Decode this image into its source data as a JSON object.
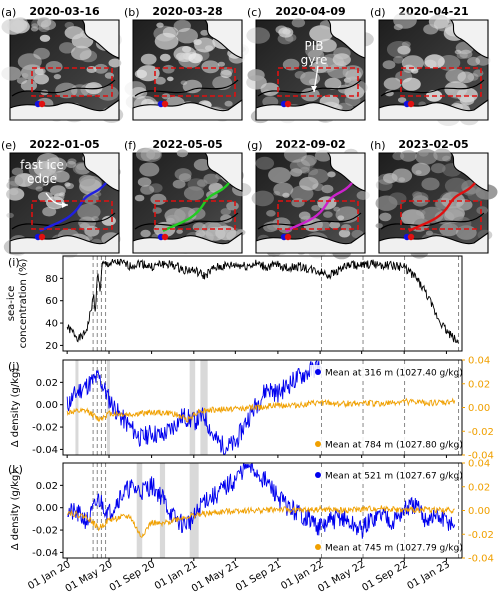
{
  "map_panels": [
    {
      "letter": "(a)",
      "date": "2020-03-16",
      "ice_level": 0.55,
      "annotation": "",
      "marker_color": "",
      "annotation_id": ""
    },
    {
      "letter": "(b)",
      "date": "2020-03-28",
      "ice_level": 0.75,
      "annotation": "",
      "marker_color": "",
      "annotation_id": ""
    },
    {
      "letter": "(c)",
      "date": "2020-04-09",
      "ice_level": 0.5,
      "annotation": "PIB\ngyre",
      "marker_color": "",
      "annotation_id": "pib-gyre"
    },
    {
      "letter": "(d)",
      "date": "2020-04-21",
      "ice_level": 0.65,
      "annotation": "",
      "marker_color": "",
      "annotation_id": ""
    },
    {
      "letter": "(e)",
      "date": "2022-01-05",
      "ice_level": 0.45,
      "annotation": "fast ice\nedge",
      "marker_color": "#1f1fe0",
      "annotation_id": "fast-ice-edge"
    },
    {
      "letter": "(f)",
      "date": "2022-05-05",
      "ice_level": 0.35,
      "annotation": "",
      "marker_color": "#22cc22",
      "annotation_id": ""
    },
    {
      "letter": "(g)",
      "date": "2022-09-02",
      "ice_level": 0.4,
      "annotation": "",
      "marker_color": "#cc22cc",
      "annotation_id": ""
    },
    {
      "letter": "(h)",
      "date": "2023-02-05",
      "ice_level": 0.25,
      "annotation": "",
      "marker_color": "#e01010",
      "annotation_id": ""
    }
  ],
  "colors": {
    "box": "#e01010",
    "mooring_blue": "#1010e0",
    "mooring_red": "#e01010",
    "series_black": "#000000",
    "series_blue": "#0000ee",
    "series_orange": "#f0a000",
    "shade": "#d9d9d9",
    "dashed": "#888888"
  },
  "x_axis": {
    "ticks": [
      "01 Jan 20",
      "01 May 20",
      "01 Sep 20",
      "01 Jan 21",
      "01 May 21",
      "01 Sep 21",
      "01 Jan 22",
      "01 May 22",
      "01 Sep 22",
      "01 Jan 23"
    ],
    "range": [
      "2019-12-20",
      "2023-02-15"
    ]
  },
  "event_dates": [
    "2020-03-16",
    "2020-03-28",
    "2020-04-09",
    "2020-04-21",
    "2022-01-05",
    "2022-05-05",
    "2022-09-02",
    "2023-02-05"
  ],
  "chart_data": [
    {
      "panel": "(i)",
      "type": "line",
      "ylabel": "sea-ice\nconcentration (%)",
      "ylim": [
        15,
        100
      ],
      "yticks": [
        "20",
        "40",
        "60",
        "80"
      ],
      "series": [
        {
          "color": "black",
          "points": [
            [
              "2020-01-01",
              36
            ],
            [
              "2020-01-20",
              31
            ],
            [
              "2020-02-05",
              26
            ],
            [
              "2020-02-20",
              30
            ],
            [
              "2020-03-01",
              38
            ],
            [
              "2020-03-10",
              52
            ],
            [
              "2020-03-18",
              64
            ],
            [
              "2020-03-22",
              48
            ],
            [
              "2020-03-28",
              85
            ],
            [
              "2020-04-05",
              70
            ],
            [
              "2020-04-12",
              92
            ],
            [
              "2020-05-01",
              93
            ],
            [
              "2020-06-01",
              94
            ],
            [
              "2020-07-01",
              91
            ],
            [
              "2020-08-01",
              94
            ],
            [
              "2020-09-01",
              90
            ],
            [
              "2020-10-01",
              93
            ],
            [
              "2020-11-01",
              92
            ],
            [
              "2020-12-01",
              88
            ],
            [
              "2021-01-01",
              87
            ],
            [
              "2021-02-01",
              82
            ],
            [
              "2021-03-01",
              89
            ],
            [
              "2021-04-01",
              91
            ],
            [
              "2021-05-01",
              92
            ],
            [
              "2021-06-01",
              91
            ],
            [
              "2021-07-01",
              93
            ],
            [
              "2021-08-01",
              90
            ],
            [
              "2021-09-01",
              92
            ],
            [
              "2021-10-01",
              89
            ],
            [
              "2021-11-01",
              91
            ],
            [
              "2021-12-01",
              88
            ],
            [
              "2022-01-01",
              86
            ],
            [
              "2022-02-01",
              83
            ],
            [
              "2022-03-01",
              89
            ],
            [
              "2022-04-01",
              92
            ],
            [
              "2022-05-01",
              91
            ],
            [
              "2022-06-01",
              93
            ],
            [
              "2022-07-01",
              92
            ],
            [
              "2022-08-01",
              91
            ],
            [
              "2022-09-01",
              90
            ],
            [
              "2022-10-01",
              82
            ],
            [
              "2022-11-01",
              68
            ],
            [
              "2022-12-01",
              48
            ],
            [
              "2023-01-01",
              33
            ],
            [
              "2023-01-20",
              27
            ],
            [
              "2023-02-05",
              22
            ]
          ]
        }
      ]
    },
    {
      "panel": "(j)",
      "type": "line",
      "ylabel": "Δ density (g/kg)",
      "ylim_left": [
        -0.045,
        0.04
      ],
      "ylim_right": [
        -0.04,
        0.04
      ],
      "yticks_left": [
        "0.02",
        "0.00",
        "-0.02",
        "-0.04"
      ],
      "yticks_right": [
        "0.04",
        "0.02",
        "0.00",
        "-0.02",
        "-0.04"
      ],
      "shaded_periods": [
        [
          "2020-01-25",
          "2020-02-01"
        ],
        [
          "2020-04-25",
          "2020-05-02"
        ],
        [
          "2020-12-20",
          "2021-01-05"
        ],
        [
          "2021-01-20",
          "2021-02-10"
        ]
      ],
      "series": [
        {
          "name": "Mean at 316 m (1027.40 g/kg)",
          "color": "blue",
          "axis": "left",
          "points": [
            [
              "2020-01-01",
              0.0
            ],
            [
              "2020-02-01",
              0.012
            ],
            [
              "2020-03-01",
              0.018
            ],
            [
              "2020-04-01",
              0.025
            ],
            [
              "2020-05-01",
              0.005
            ],
            [
              "2020-06-01",
              -0.01
            ],
            [
              "2020-07-01",
              -0.02
            ],
            [
              "2020-08-01",
              -0.03
            ],
            [
              "2020-09-01",
              -0.025
            ],
            [
              "2020-10-01",
              -0.028
            ],
            [
              "2020-11-01",
              -0.02
            ],
            [
              "2020-12-01",
              -0.01
            ],
            [
              "2021-01-01",
              -0.015
            ],
            [
              "2021-02-01",
              -0.01
            ],
            [
              "2021-03-01",
              -0.03
            ],
            [
              "2021-04-01",
              -0.038
            ],
            [
              "2021-05-01",
              -0.035
            ],
            [
              "2021-06-01",
              -0.015
            ],
            [
              "2021-07-01",
              0.0
            ],
            [
              "2021-08-01",
              0.015
            ],
            [
              "2021-09-01",
              0.01
            ],
            [
              "2021-10-01",
              0.018
            ],
            [
              "2021-11-01",
              0.025
            ],
            [
              "2021-12-01",
              0.03
            ],
            [
              "2022-01-01",
              0.035
            ]
          ]
        },
        {
          "name": "Mean at 784 m (1027.80 g/kg)",
          "color": "orange",
          "axis": "right",
          "points": [
            [
              "2020-01-01",
              -0.004
            ],
            [
              "2020-03-01",
              -0.003
            ],
            [
              "2020-04-01",
              -0.01
            ],
            [
              "2020-05-01",
              -0.005
            ],
            [
              "2020-07-01",
              -0.006
            ],
            [
              "2020-09-01",
              -0.004
            ],
            [
              "2020-11-01",
              -0.005
            ],
            [
              "2020-12-15",
              -0.01
            ],
            [
              "2021-01-15",
              -0.003
            ],
            [
              "2021-03-01",
              -0.002
            ],
            [
              "2021-05-01",
              -0.001
            ],
            [
              "2021-07-01",
              0.0
            ],
            [
              "2021-09-01",
              0.002
            ],
            [
              "2021-11-01",
              0.002
            ],
            [
              "2022-01-01",
              0.004
            ],
            [
              "2022-03-01",
              0.003
            ],
            [
              "2022-05-01",
              0.004
            ],
            [
              "2022-07-01",
              0.003
            ],
            [
              "2022-09-01",
              0.005
            ],
            [
              "2022-11-01",
              0.004
            ],
            [
              "2023-01-01",
              0.004
            ],
            [
              "2023-01-25",
              0.006
            ]
          ]
        }
      ]
    },
    {
      "panel": "(k)",
      "type": "line",
      "ylabel": "Δ density (g/kg)",
      "ylim_left": [
        -0.045,
        0.04
      ],
      "ylim_right": [
        -0.04,
        0.04
      ],
      "yticks_left": [
        "0.02",
        "0.00",
        "-0.02",
        "-0.04"
      ],
      "yticks_right": [
        "0.04",
        "0.02",
        "0.00",
        "-0.02",
        "-0.04"
      ],
      "shaded_periods": [
        [
          "2020-07-20",
          "2020-08-05"
        ],
        [
          "2020-09-25",
          "2020-10-10"
        ],
        [
          "2020-12-20",
          "2021-01-15"
        ]
      ],
      "series": [
        {
          "name": "Mean at 521 m (1027.67 g/kg)",
          "color": "blue",
          "axis": "left",
          "points": [
            [
              "2020-01-01",
              -0.003
            ],
            [
              "2020-02-01",
              -0.006
            ],
            [
              "2020-03-01",
              -0.012
            ],
            [
              "2020-04-01",
              0.008
            ],
            [
              "2020-05-01",
              -0.005
            ],
            [
              "2020-06-01",
              0.01
            ],
            [
              "2020-07-01",
              0.018
            ],
            [
              "2020-08-01",
              0.015
            ],
            [
              "2020-09-01",
              0.02
            ],
            [
              "2020-10-01",
              0.01
            ],
            [
              "2020-11-01",
              -0.008
            ],
            [
              "2020-12-01",
              -0.015
            ],
            [
              "2021-01-01",
              -0.01
            ],
            [
              "2021-02-01",
              0.008
            ],
            [
              "2021-03-01",
              0.01
            ],
            [
              "2021-04-01",
              0.018
            ],
            [
              "2021-05-01",
              0.025
            ],
            [
              "2021-06-01",
              0.038
            ],
            [
              "2021-07-01",
              0.032
            ],
            [
              "2021-08-01",
              0.022
            ],
            [
              "2021-09-01",
              0.01
            ],
            [
              "2021-10-01",
              0.0
            ],
            [
              "2021-11-01",
              -0.005
            ],
            [
              "2021-12-01",
              -0.01
            ],
            [
              "2022-01-01",
              -0.018
            ],
            [
              "2022-02-01",
              -0.012
            ],
            [
              "2022-03-01",
              -0.008
            ],
            [
              "2022-04-01",
              -0.015
            ],
            [
              "2022-05-01",
              -0.02
            ],
            [
              "2022-06-01",
              -0.01
            ],
            [
              "2022-07-01",
              -0.005
            ],
            [
              "2022-08-01",
              -0.012
            ],
            [
              "2022-09-01",
              -0.002
            ],
            [
              "2022-10-01",
              0.002
            ],
            [
              "2022-11-01",
              -0.01
            ],
            [
              "2022-12-01",
              -0.008
            ],
            [
              "2023-01-01",
              -0.012
            ],
            [
              "2023-01-25",
              -0.015
            ]
          ]
        },
        {
          "name": "Mean at 745 m (1027.79 g/kg)",
          "color": "orange",
          "axis": "right",
          "points": [
            [
              "2020-01-01",
              -0.001
            ],
            [
              "2020-03-01",
              -0.006
            ],
            [
              "2020-04-01",
              -0.015
            ],
            [
              "2020-05-01",
              -0.008
            ],
            [
              "2020-06-01",
              -0.006
            ],
            [
              "2020-07-01",
              -0.005
            ],
            [
              "2020-08-01",
              -0.022
            ],
            [
              "2020-09-01",
              -0.01
            ],
            [
              "2020-10-01",
              -0.012
            ],
            [
              "2020-11-01",
              -0.008
            ],
            [
              "2020-12-01",
              -0.006
            ],
            [
              "2021-01-01",
              -0.004
            ],
            [
              "2021-03-01",
              -0.002
            ],
            [
              "2021-05-01",
              0.0
            ],
            [
              "2021-07-01",
              0.0
            ],
            [
              "2021-09-01",
              0.001
            ],
            [
              "2021-11-01",
              0.0
            ],
            [
              "2022-01-01",
              0.001
            ],
            [
              "2022-03-01",
              0.0
            ],
            [
              "2022-05-01",
              0.001
            ],
            [
              "2022-07-01",
              0.002
            ],
            [
              "2022-09-01",
              0.0
            ],
            [
              "2022-11-01",
              0.001
            ],
            [
              "2023-01-01",
              0.0
            ],
            [
              "2023-01-25",
              0.001
            ]
          ]
        }
      ]
    }
  ]
}
